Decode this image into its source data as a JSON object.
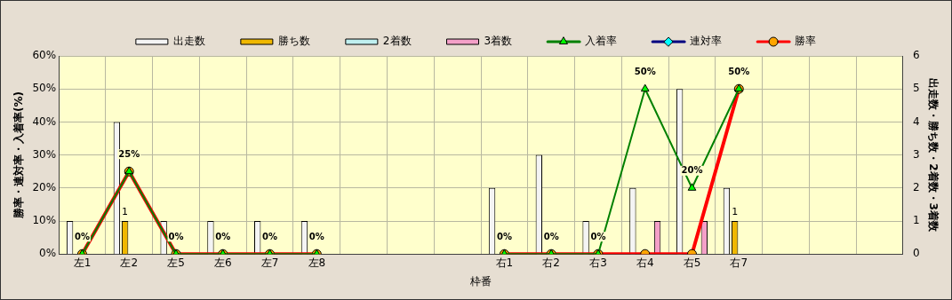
{
  "chart_data": {
    "type": "bar",
    "xlabel": "枠番",
    "ylabel": "勝率・連対率・入着率(%)",
    "y2label": "出走数・勝ち数・2着数・3着数",
    "categories": [
      "左1",
      "左2",
      "左5",
      "左6",
      "左7",
      "左8",
      null,
      null,
      null,
      "右1",
      "右2",
      "右3",
      "右4",
      "右5",
      "右7",
      null,
      null,
      null
    ],
    "series": [
      {
        "name": "出走数",
        "axis": "y2",
        "color": "#f4f4f4",
        "values": [
          1,
          4,
          1,
          1,
          1,
          1,
          null,
          null,
          null,
          2,
          3,
          1,
          2,
          5,
          2,
          null,
          null,
          null
        ]
      },
      {
        "name": "勝ち数",
        "axis": "y2",
        "color": "#f0b800",
        "values": [
          0,
          1,
          0,
          0,
          0,
          0,
          null,
          null,
          null,
          0,
          0,
          0,
          0,
          0,
          1,
          null,
          null,
          null
        ],
        "value_labels": [
          null,
          "1",
          null,
          null,
          null,
          null,
          null,
          null,
          null,
          null,
          null,
          null,
          null,
          null,
          "1",
          null,
          null,
          null
        ]
      },
      {
        "name": "2着数",
        "axis": "y2",
        "color": "#c0f0f0",
        "values": [
          0,
          0,
          0,
          0,
          0,
          0,
          null,
          null,
          null,
          0,
          0,
          0,
          0,
          0,
          0,
          null,
          null,
          null
        ]
      },
      {
        "name": "3着数",
        "axis": "y2",
        "color": "#f4a0c8",
        "values": [
          0,
          0,
          0,
          0,
          0,
          0,
          null,
          null,
          null,
          0,
          0,
          0,
          1,
          1,
          0,
          null,
          null,
          null
        ]
      },
      {
        "name": "入着率",
        "type": "line",
        "marker": "triangle",
        "color": "#008000",
        "values": [
          0,
          25,
          0,
          0,
          0,
          0,
          null,
          null,
          null,
          0,
          0,
          0,
          50,
          20,
          50,
          null,
          null,
          null
        ],
        "value_labels": [
          "0%",
          "25%",
          "0%",
          "0%",
          "0%",
          "0%",
          null,
          null,
          null,
          "0%",
          "0%",
          "0%",
          "50%",
          "20%",
          "50%",
          null,
          null,
          null
        ]
      },
      {
        "name": "連対率",
        "type": "line",
        "marker": "diamond",
        "color": "#000080",
        "values": [
          null,
          null,
          null,
          null,
          null,
          null,
          null,
          null,
          null,
          null,
          null,
          null,
          null,
          null,
          null,
          null,
          null,
          null
        ]
      },
      {
        "name": "勝率",
        "type": "line",
        "marker": "circle",
        "color": "#ff0000",
        "values": [
          0,
          25,
          0,
          0,
          0,
          0,
          null,
          null,
          null,
          0,
          0,
          0,
          0,
          0,
          50,
          null,
          null,
          null
        ]
      }
    ],
    "ylim": [
      0,
      60
    ],
    "yticks": [
      {
        "value": 0,
        "label": "0%"
      },
      {
        "value": 10,
        "label": "10%"
      },
      {
        "value": 20,
        "label": "20%"
      },
      {
        "value": 30,
        "label": "30%"
      },
      {
        "value": 40,
        "label": "40%"
      },
      {
        "value": 50,
        "label": "50%"
      },
      {
        "value": 60,
        "label": "60%"
      }
    ],
    "y2lim": [
      0,
      6
    ],
    "y2ticks": [
      0,
      1,
      2,
      3,
      4,
      5,
      6
    ],
    "grid": true,
    "legend": "top"
  }
}
